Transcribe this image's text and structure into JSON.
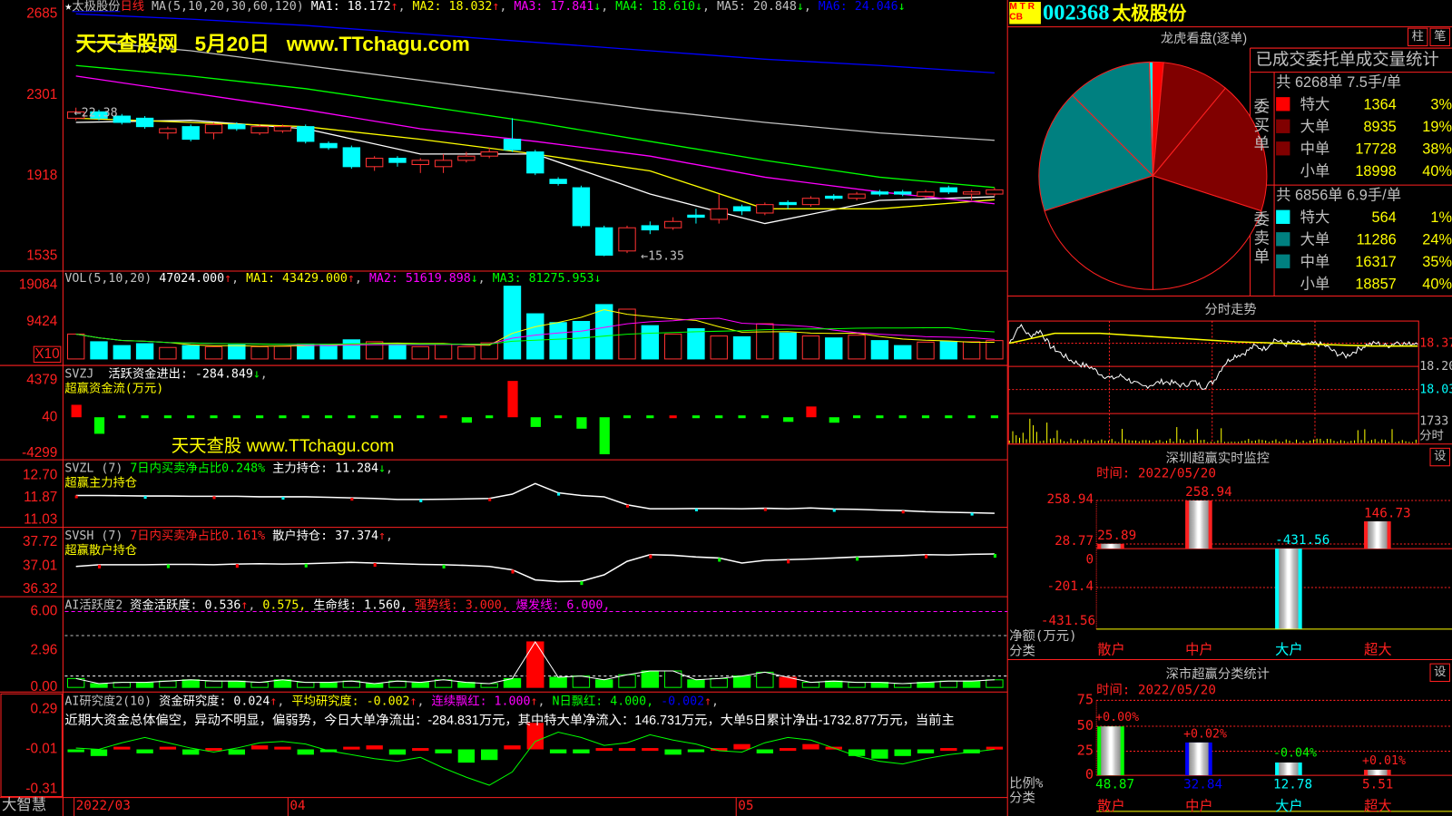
{
  "stock": {
    "code": "002368",
    "name": "太极股份",
    "badge": "M T R\nCB",
    "badge_line1": "M T R",
    "badge_line2": "CB"
  },
  "main_header": {
    "star": "★",
    "name": "太极股份",
    "period": "日线",
    "ma_params": "MA(5,10,20,30,60,120)",
    "ma1": "MA1: 18.172",
    "ma2": "MA2: 18.032",
    "ma3": "MA3: 17.841",
    "ma4": "MA4: 18.610",
    "ma5": "MA5: 20.848",
    "ma6": "MA6: 24.046"
  },
  "watermark_top": {
    "site": "天天查股网",
    "date": "5月20日",
    "url": "www.TTchagu.com"
  },
  "watermark_mid": "天天查股 www.TTchagu.com",
  "annotations": {
    "high": "←22.38",
    "low": "←15.35"
  },
  "axes": {
    "main": [
      "2685",
      "2301",
      "1918",
      "1535"
    ],
    "vol": [
      "19084",
      "9424",
      "X10"
    ],
    "svzj": [
      "4379",
      "40",
      "-4299"
    ],
    "svzl": [
      "12.70",
      "11.87",
      "11.03"
    ],
    "svsh": [
      "37.72",
      "37.01",
      "36.32"
    ],
    "ai1": [
      "6.00",
      "2.96",
      "0.00"
    ],
    "ai2": [
      "0.29",
      "-0.01",
      "-0.31"
    ],
    "dates": [
      "2022/03",
      "04",
      "05"
    ],
    "brand": "大智慧"
  },
  "vol_header": {
    "name": "VOL(5,10,20)",
    "v": "47024.000",
    "ma1": "MA1: 43429.000",
    "ma2": "MA2: 51619.898",
    "ma3": "MA3: 81275.953"
  },
  "svzj_header": {
    "name": "SVZJ",
    "label": "活跃资金进出: -284.849",
    "sub": "超赢资金流(万元)"
  },
  "svzl_header": {
    "name": "SVZL (7)",
    "ratio": "7日内买卖净占比0.248%",
    "label": "主力持仓: 11.284",
    "sub": "超赢主力持仓"
  },
  "svsh_header": {
    "name": "SVSH (7)",
    "ratio": "7日内买卖净占比0.161%",
    "label": "散户持仓: 37.374",
    "sub": "超赢散户持仓"
  },
  "ai1_header": {
    "name": "AI活跃度2",
    "a": "资金活跃度: 0.536",
    "b": "0.575,",
    "c": "生命线: 1.560,",
    "d": "强势线: 3.000,",
    "e": "爆发线: 6.000,"
  },
  "ai2_header": {
    "name": "AI研究度2(10)",
    "a": "资金研究度: 0.024",
    "b": "平均研究度: -0.002",
    "c": "连续飘红: 1.000",
    "d": "N日飘红: 4.000,",
    "e": "-0.002",
    "comment": "近期大资金总体偏空，异动不明显，偏弱势，今日大单净流出：-284.831万元，其中特大单净流入：146.731万元，大单5日累计净出-1732.877万元，当前主"
  },
  "right": {
    "longhu_title": "龙虎看盘(逐单)",
    "btn_bar": "柱",
    "btn_pen": "笔",
    "btn_set": "设",
    "stats_title": "已成交委托单成交量统计",
    "buy": {
      "label": "委买单",
      "summary": "共 6268单 7.5手/单",
      "rows": [
        {
          "name": "特大",
          "count": "1364",
          "pct": "3%",
          "color": "#ff0000"
        },
        {
          "name": "大单",
          "count": "8935",
          "pct": "19%",
          "color": "#800000"
        },
        {
          "name": "中单",
          "count": "17728",
          "pct": "38%",
          "color": "#800000"
        },
        {
          "name": "小单",
          "count": "18998",
          "pct": "40%",
          "color": "#000000"
        }
      ]
    },
    "sell": {
      "label": "委卖单",
      "summary": "共 6856单 6.9手/单",
      "rows": [
        {
          "name": "特大",
          "count": "564",
          "pct": "1%",
          "color": "#00ffff"
        },
        {
          "name": "大单",
          "count": "11286",
          "pct": "24%",
          "color": "#008080"
        },
        {
          "name": "中单",
          "count": "16317",
          "pct": "35%",
          "color": "#008080"
        },
        {
          "name": "小单",
          "count": "18857",
          "pct": "40%",
          "color": "#000000"
        }
      ]
    },
    "intraday": {
      "title": "分时走势",
      "labels": [
        "18.37",
        "18.20",
        "18.03",
        "1733",
        "分时"
      ],
      "price": [
        18.37,
        18.5,
        18.42,
        18.46,
        18.35,
        18.3,
        18.25,
        18.22,
        18.2,
        18.15,
        18.12,
        18.14,
        18.1,
        18.06,
        18.08,
        18.1,
        18.09,
        18.07,
        18.1,
        18.06,
        18.1,
        18.22,
        18.28,
        18.3,
        18.35,
        18.33,
        18.4,
        18.36,
        18.38,
        18.35,
        18.37,
        18.35,
        18.3,
        18.28,
        18.32,
        18.36,
        18.37,
        18.35,
        18.38,
        18.36,
        18.38
      ],
      "avg": [
        18.37,
        18.44,
        18.44,
        18.42,
        18.4,
        18.38,
        18.37,
        18.36,
        18.35,
        18.35
      ]
    },
    "realtime": {
      "title": "深圳超赢实时监控",
      "time": "时间: 2022/05/20",
      "ticks": [
        "258.94",
        "28.77",
        "0",
        "-201.4",
        "-431.56"
      ],
      "ylabel": "净额(万元)",
      "xlabel": "分类",
      "bars": [
        {
          "cat": "散户",
          "value": 25.89,
          "label": "25.89",
          "color": "#ff2020"
        },
        {
          "cat": "中户",
          "value": 258.94,
          "label": "258.94",
          "color": "#ff2020"
        },
        {
          "cat": "大户",
          "value": -431.56,
          "label": "-431.56",
          "color": "#00ffff"
        },
        {
          "cat": "超大",
          "value": 146.73,
          "label": "146.73",
          "color": "#ff2020"
        }
      ]
    },
    "classify": {
      "title": "深市超赢分类统计",
      "time": "时间: 2022/05/20",
      "ticks": [
        "75",
        "50",
        "25",
        "0"
      ],
      "ylabel": "比例%",
      "xlabel": "分类",
      "bars": [
        {
          "cat": "散户",
          "value": 48.87,
          "label": "48.87",
          "change": "+0.00%",
          "color": "#00ff00",
          "change_color": "#ff2020"
        },
        {
          "cat": "中户",
          "value": 32.84,
          "label": "32.84",
          "change": "+0.02%",
          "color": "#0000ff",
          "change_color": "#ff2020"
        },
        {
          "cat": "大户",
          "value": 12.78,
          "label": "12.78",
          "change": "-0.04%",
          "color": "#00ffff",
          "change_color": "#00ff00"
        },
        {
          "cat": "超大",
          "value": 5.51,
          "label": "5.51",
          "change": "+0.01%",
          "color": "#ff2020",
          "change_color": "#ff2020"
        }
      ]
    }
  },
  "chart_data": {
    "type": "candlestick",
    "price_range": [
      15.35,
      26.85
    ],
    "ohlc": [
      [
        21.9,
        22.2,
        22.4,
        21.8
      ],
      [
        22.2,
        21.9,
        22.3,
        21.8
      ],
      [
        22.0,
        21.7,
        22.1,
        21.6
      ],
      [
        21.9,
        21.5,
        22.0,
        21.4
      ],
      [
        21.2,
        21.4,
        21.5,
        20.9
      ],
      [
        21.5,
        20.9,
        21.6,
        20.8
      ],
      [
        21.2,
        21.6,
        21.7,
        20.9
      ],
      [
        21.6,
        21.4,
        21.7,
        21.3
      ],
      [
        21.2,
        21.5,
        21.6,
        21.1
      ],
      [
        21.3,
        21.5,
        21.6,
        21.2
      ],
      [
        21.5,
        20.8,
        21.6,
        20.7
      ],
      [
        20.7,
        20.5,
        20.8,
        20.4
      ],
      [
        20.5,
        19.6,
        20.6,
        19.5
      ],
      [
        19.6,
        20.0,
        20.1,
        19.4
      ],
      [
        20.0,
        19.8,
        20.1,
        19.6
      ],
      [
        19.7,
        19.9,
        20.0,
        19.3
      ],
      [
        19.6,
        19.9,
        20.2,
        19.3
      ],
      [
        19.9,
        20.1,
        20.3,
        19.8
      ],
      [
        20.1,
        20.3,
        20.5,
        20.0
      ],
      [
        20.9,
        20.4,
        21.9,
        20.3
      ],
      [
        20.3,
        19.3,
        20.4,
        19.2
      ],
      [
        19.0,
        18.8,
        19.1,
        18.7
      ],
      [
        18.6,
        16.8,
        18.7,
        16.7
      ],
      [
        16.7,
        15.4,
        16.8,
        15.35
      ],
      [
        15.6,
        16.7,
        16.8,
        15.5
      ],
      [
        16.8,
        16.6,
        17.0,
        16.4
      ],
      [
        16.7,
        17.0,
        17.2,
        16.6
      ],
      [
        17.3,
        17.2,
        17.6,
        16.9
      ],
      [
        17.1,
        17.6,
        18.3,
        16.9
      ],
      [
        17.7,
        17.5,
        17.8,
        17.3
      ],
      [
        17.4,
        17.8,
        17.9,
        17.3
      ],
      [
        17.9,
        17.8,
        18.0,
        17.6
      ],
      [
        17.8,
        18.1,
        18.2,
        17.7
      ],
      [
        18.2,
        18.1,
        18.3,
        18.0
      ],
      [
        18.1,
        18.3,
        18.4,
        18.0
      ],
      [
        18.4,
        18.3,
        18.5,
        18.2
      ],
      [
        18.4,
        18.3,
        18.5,
        18.2
      ],
      [
        18.2,
        18.4,
        18.5,
        18.1
      ],
      [
        18.6,
        18.4,
        18.7,
        18.3
      ],
      [
        18.3,
        18.4,
        18.5,
        18.0
      ],
      [
        18.3,
        18.5,
        18.6,
        18.2
      ]
    ],
    "ma": [
      {
        "name": "MA1",
        "color": "#ffffff",
        "values": [
          21.7,
          21.8,
          21.4,
          20.2,
          20.2,
          18.3,
          16.9,
          18.0,
          18.17
        ]
      },
      {
        "name": "MA2",
        "color": "#ffff00",
        "values": [
          21.9,
          21.7,
          21.5,
          20.9,
          20.2,
          19.4,
          17.6,
          17.6,
          18.03
        ]
      },
      {
        "name": "MA3",
        "color": "#ff00ff",
        "values": [
          23.9,
          23.1,
          22.3,
          21.4,
          20.8,
          20.1,
          19.1,
          18.4,
          17.84
        ]
      },
      {
        "name": "MA4",
        "color": "#00ff00",
        "values": [
          24.4,
          23.9,
          23.3,
          22.5,
          21.7,
          20.8,
          19.9,
          19.1,
          18.61
        ]
      },
      {
        "name": "MA5",
        "color": "#c0c0c0",
        "values": [
          25.6,
          25.1,
          24.4,
          23.7,
          23.0,
          22.3,
          21.7,
          21.2,
          20.85
        ]
      },
      {
        "name": "MA6",
        "color": "#0000ff",
        "values": [
          26.85,
          26.6,
          26.3,
          25.9,
          25.5,
          25.1,
          24.7,
          24.4,
          24.05
        ]
      }
    ],
    "volume": [
      6500,
      4500,
      3500,
      4000,
      3000,
      3500,
      3200,
      3700,
      3200,
      3300,
      3900,
      3800,
      5000,
      4500,
      3600,
      3200,
      3800,
      3200,
      4200,
      19000,
      11800,
      9500,
      9800,
      14200,
      13000,
      8700,
      6500,
      7900,
      6000,
      5800,
      9200,
      6800,
      6000,
      5500,
      6200,
      4800,
      3500,
      4400,
      4600,
      4500,
      4800
    ],
    "svzj": [
      1500,
      -1900,
      -150,
      -150,
      -150,
      -150,
      -150,
      -150,
      -150,
      -150,
      -150,
      -150,
      -150,
      -200,
      -150,
      -200,
      250,
      -600,
      -150,
      4300,
      -1100,
      -200,
      -1300,
      -4299,
      -150,
      -150,
      250,
      -150,
      -150,
      -150,
      -200,
      -500,
      1300,
      -600,
      -150,
      -150,
      -200,
      -400,
      -150,
      -200,
      -200
    ],
    "svzl": [
      11.95,
      11.95,
      11.94,
      11.93,
      11.93,
      11.92,
      11.92,
      11.92,
      11.9,
      11.9,
      11.9,
      11.88,
      11.86,
      11.84,
      11.8,
      11.8,
      11.81,
      11.82,
      11.84,
      12.0,
      12.4,
      12.05,
      11.95,
      11.9,
      11.6,
      11.45,
      11.45,
      11.46,
      11.46,
      11.45,
      11.47,
      11.45,
      11.48,
      11.44,
      11.43,
      11.4,
      11.38,
      11.34,
      11.32,
      11.3,
      11.28
    ],
    "svsh": [
      37.0,
      37.05,
      37.05,
      37.05,
      37.06,
      37.06,
      37.05,
      37.07,
      37.08,
      37.07,
      37.08,
      37.1,
      37.12,
      37.1,
      37.08,
      37.06,
      37.05,
      37.03,
      37.0,
      36.9,
      36.6,
      36.55,
      36.56,
      36.75,
      37.15,
      37.35,
      37.33,
      37.28,
      37.25,
      37.1,
      37.18,
      37.2,
      37.22,
      37.25,
      37.28,
      37.3,
      37.32,
      37.35,
      37.34,
      37.36,
      37.37
    ],
    "ai1": [
      0.7,
      0.3,
      0.4,
      0.4,
      0.5,
      0.6,
      0.5,
      0.5,
      0.4,
      0.6,
      0.4,
      0.4,
      0.5,
      0.3,
      0.5,
      0.4,
      0.6,
      0.4,
      0.3,
      0.7,
      3.6,
      0.8,
      0.9,
      0.6,
      1.0,
      1.3,
      1.3,
      0.6,
      0.7,
      0.9,
      1.2,
      0.8,
      0.4,
      0.5,
      0.4,
      0.4,
      0.3,
      0.4,
      0.5,
      0.5,
      0.6
    ],
    "ai1_lines": {
      "life": 1.56,
      "strong": 3.0,
      "burst": 6.0
    },
    "ai2": [
      -0.03,
      -0.06,
      0.01,
      -0.04,
      0.01,
      -0.05,
      0.0,
      -0.05,
      0.02,
      0.01,
      -0.05,
      -0.03,
      0.01,
      0.02,
      -0.05,
      0.0,
      -0.04,
      -0.11,
      -0.09,
      0.02,
      0.19,
      -0.04,
      -0.04,
      0.0,
      0.0,
      0.0,
      -0.05,
      -0.03,
      0.0,
      0.03,
      -0.04,
      0.0,
      0.03,
      0.01,
      -0.06,
      -0.08,
      -0.06,
      -0.04,
      0.0,
      -0.04,
      0.01
    ],
    "ai2_line": [
      0.0,
      -0.01,
      0.04,
      0.08,
      0.04,
      0.0,
      -0.03,
      0.0,
      0.04,
      0.05,
      0.03,
      -0.02,
      -0.05,
      -0.08,
      -0.1,
      -0.07,
      -0.15,
      -0.22,
      -0.28,
      -0.18,
      0.05,
      0.12,
      0.08,
      0.02,
      0.04,
      0.1,
      0.06,
      0.03,
      -0.02,
      -0.03,
      0.04,
      0.08,
      0.06,
      0.0,
      -0.06,
      -0.1,
      -0.12,
      -0.08,
      -0.05,
      -0.03,
      -0.01
    ],
    "up_color": "#ff3232",
    "down_color": "#00ffff"
  }
}
